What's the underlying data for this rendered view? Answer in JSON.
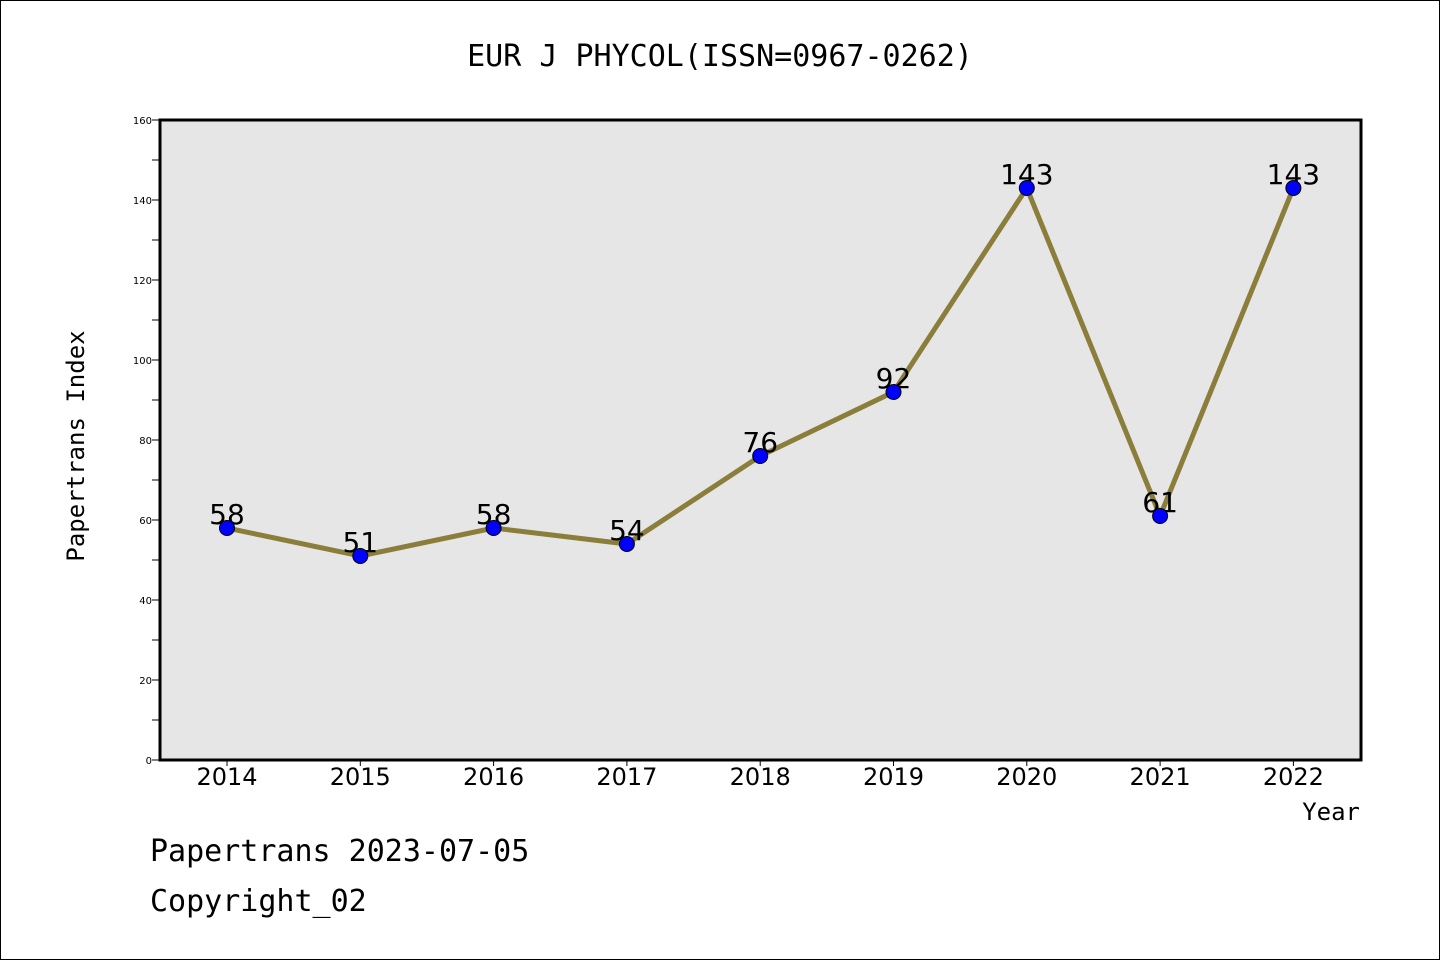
{
  "chart_data": {
    "type": "line",
    "title": "EUR J PHYCOL(ISSN=0967-0262)",
    "xlabel": "Year",
    "ylabel": "Papertrans Index",
    "categories": [
      "2014",
      "2015",
      "2016",
      "2017",
      "2018",
      "2019",
      "2020",
      "2021",
      "2022"
    ],
    "values": [
      58,
      51,
      58,
      54,
      76,
      92,
      143,
      61,
      143
    ],
    "ylim": [
      0,
      160
    ],
    "y_ticks": [
      0,
      20,
      40,
      60,
      80,
      100,
      120,
      140,
      160
    ],
    "grid": false,
    "legend": "none",
    "line_color": "#8b7d3a",
    "marker_color": "#0000ff",
    "plot_background": "#e6e6e6"
  },
  "footer": {
    "line1": "Papertrans 2023-07-05",
    "line2": "Copyright_02"
  }
}
